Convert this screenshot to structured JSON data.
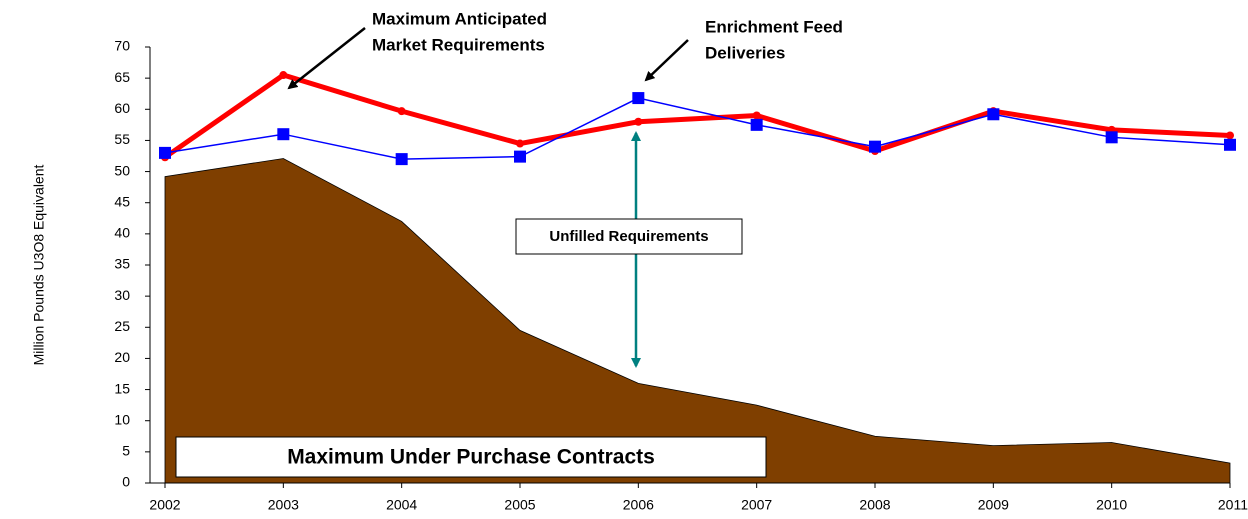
{
  "chart_data": {
    "type": "line",
    "categories": [
      "2002",
      "2003",
      "2004",
      "2005",
      "2006",
      "2007",
      "2008",
      "2009",
      "2010",
      "2011"
    ],
    "series": [
      {
        "name": "Maximum Under Purchase Contracts",
        "kind": "area",
        "color": "#7f3f00",
        "values": [
          49.2,
          52.1,
          42,
          24.5,
          16,
          12.5,
          7.5,
          6,
          6.5,
          3.2
        ]
      },
      {
        "kind": "line",
        "color": "#ff0000",
        "values": [
          52.3,
          65.5,
          59.7,
          54.5,
          58,
          59,
          53.3,
          59.7,
          56.7,
          55.8
        ]
      },
      {
        "kind": "line",
        "color": "#0000ff",
        "values": [
          53,
          56,
          52,
          52.4,
          61.8,
          57.5,
          54,
          59.2,
          55.5,
          54.3
        ]
      }
    ],
    "ylabel": "Million Pounds U3O8 Equivalent",
    "ylim": [
      0,
      70
    ],
    "yticks": [
      0,
      5,
      10,
      15,
      20,
      25,
      30,
      35,
      40,
      45,
      50,
      55,
      60,
      65,
      70
    ],
    "grid": false,
    "annotations": [
      {
        "lines": [
          "Maximum Anticipated",
          "Market Requirements"
        ]
      },
      {
        "lines": [
          "Enrichment Feed",
          "Deliveries"
        ]
      },
      {
        "lines": [
          "Unfilled Requirements"
        ]
      }
    ]
  }
}
